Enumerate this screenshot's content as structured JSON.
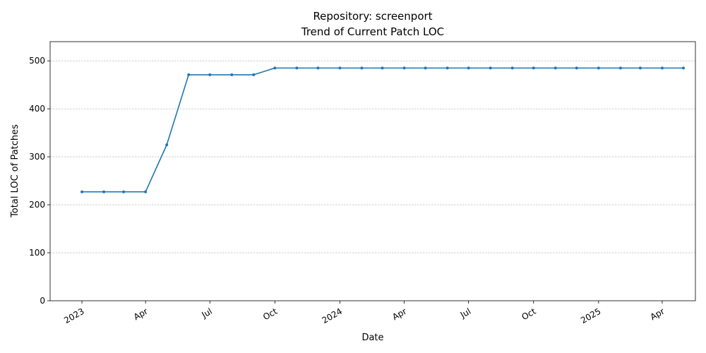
{
  "chart_data": {
    "type": "line",
    "title": "Repository: screenport",
    "subtitle": "Trend of Current Patch LOC",
    "xlabel": "Date",
    "ylabel": "Total LOC of Patches",
    "ylim": [
      0,
      540
    ],
    "yticks": [
      0,
      100,
      200,
      300,
      400,
      500
    ],
    "xlim": [
      "2022-11-17",
      "2025-05-18"
    ],
    "xticks": [
      {
        "date": "2023-01-01",
        "label": "2023"
      },
      {
        "date": "2023-04-01",
        "label": "Apr"
      },
      {
        "date": "2023-07-01",
        "label": "Jul"
      },
      {
        "date": "2023-10-01",
        "label": "Oct"
      },
      {
        "date": "2024-01-01",
        "label": "2024"
      },
      {
        "date": "2024-04-01",
        "label": "Apr"
      },
      {
        "date": "2024-07-01",
        "label": "Jul"
      },
      {
        "date": "2024-10-01",
        "label": "Oct"
      },
      {
        "date": "2025-01-01",
        "label": "2025"
      },
      {
        "date": "2025-04-01",
        "label": "Apr"
      }
    ],
    "grid": "y",
    "color": "#1f77b4",
    "series": [
      {
        "x": [
          "2023-01-01",
          "2023-02-01",
          "2023-03-01",
          "2023-04-01",
          "2023-05-01",
          "2023-06-01",
          "2023-07-01",
          "2023-08-01",
          "2023-09-01",
          "2023-10-01",
          "2023-11-01",
          "2023-12-01",
          "2024-01-01",
          "2024-02-01",
          "2024-03-01",
          "2024-04-01",
          "2024-05-01",
          "2024-06-01",
          "2024-07-01",
          "2024-08-01",
          "2024-09-01",
          "2024-10-01",
          "2024-11-01",
          "2024-12-01",
          "2025-01-01",
          "2025-02-01",
          "2025-03-01",
          "2025-04-01",
          "2025-05-01"
        ],
        "y": [
          227,
          227,
          227,
          227,
          325,
          471,
          471,
          471,
          471,
          485,
          485,
          485,
          485,
          485,
          485,
          485,
          485,
          485,
          485,
          485,
          485,
          485,
          485,
          485,
          485,
          485,
          485,
          485,
          485
        ]
      }
    ]
  }
}
